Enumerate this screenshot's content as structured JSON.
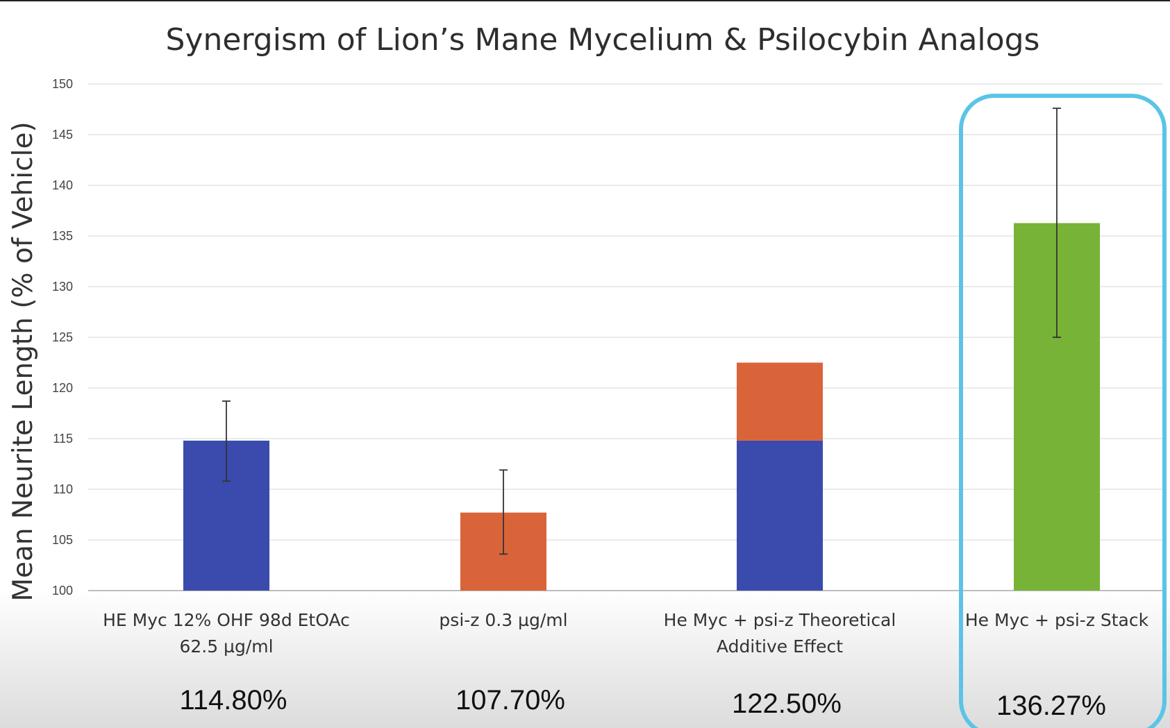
{
  "chart_data": {
    "type": "bar",
    "title": "Synergism of Lion’s Mane Mycelium & Psilocybin Analogs",
    "ylabel": "Mean Neurite Length (% of Vehicle)",
    "xlabel": "",
    "ylim": [
      100,
      150
    ],
    "yticks": [
      100,
      105,
      110,
      115,
      120,
      125,
      130,
      135,
      140,
      145,
      150
    ],
    "grid": true,
    "categories": [
      [
        "HE Myc 12% OHF 98d EtOAc",
        "62.5 µg/ml"
      ],
      [
        "psi-z 0.3 µg/ml"
      ],
      [
        "He Myc + psi-z Theoretical",
        "Additive Effect"
      ],
      [
        "He Myc + psi-z Stack"
      ]
    ],
    "value_labels": [
      "114.80%",
      "107.70%",
      "122.50%",
      "136.27%"
    ],
    "bars": [
      {
        "segments": [
          {
            "from": 100,
            "to": 114.8,
            "color": "#3a4bad"
          }
        ],
        "error": [
          110.8,
          118.7
        ]
      },
      {
        "segments": [
          {
            "from": 100,
            "to": 107.7,
            "color": "#d9643a"
          }
        ],
        "error": [
          103.6,
          111.9
        ]
      },
      {
        "segments": [
          {
            "from": 100,
            "to": 114.8,
            "color": "#3a4bad"
          },
          {
            "from": 114.8,
            "to": 122.5,
            "color": "#d9643a"
          }
        ],
        "error": null
      },
      {
        "segments": [
          {
            "from": 100,
            "to": 136.27,
            "color": "#77b337"
          }
        ],
        "error": [
          125.0,
          147.6
        ]
      }
    ],
    "highlight": {
      "category_index": 3,
      "color": "#5bc4e6"
    }
  }
}
